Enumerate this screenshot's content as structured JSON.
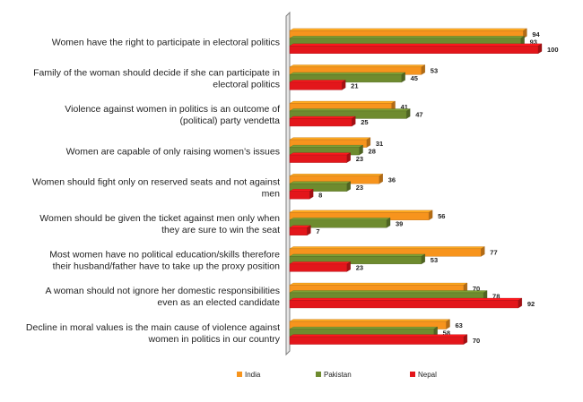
{
  "chart_data": {
    "type": "bar",
    "orientation": "horizontal",
    "categories": [
      "Women have the right to participate in electoral politics",
      "Family of the woman should decide if she can participate in electoral politics",
      "Violence against women in politics is an outcome of (political) party vendetta",
      "Women are capable of only raising women's issues",
      "Women should fight only on reserved seats and not against men",
      "Women should be given the ticket against men only when they are sure to win the seat",
      "Most women have no political education/skills therefore their husband/father have to take up the proxy position",
      "A woman should not ignore her domestic responsibilities even as an elected candidate",
      "Decline in moral values is the main cause of violence against women in politics in our country"
    ],
    "category_lines": [
      [
        "Women have the right to participate in electoral politics"
      ],
      [
        "Family of the woman should decide if she can participate in",
        "electoral politics"
      ],
      [
        "Violence against women in politics is an outcome of",
        "(political) party vendetta"
      ],
      [
        "Women are capable of only raising women’s issues"
      ],
      [
        "Women should fight only on reserved seats and not against",
        "men"
      ],
      [
        "Women should be given the ticket against men only when",
        "they are sure to win the seat"
      ],
      [
        "Most women have no political education/skills therefore",
        "their husband/father have to take up the proxy position"
      ],
      [
        "A woman should not ignore her domestic responsibilities",
        "even as an elected candidate"
      ],
      [
        "Decline in moral values is the main cause of violence against",
        "women in politics in our country"
      ]
    ],
    "series": [
      {
        "name": "India",
        "color": "#F7941D",
        "values": [
          94,
          53,
          41,
          31,
          36,
          56,
          77,
          70,
          63
        ]
      },
      {
        "name": "Pakistan",
        "color": "#6E8B2F",
        "values": [
          93,
          45,
          47,
          28,
          23,
          39,
          53,
          78,
          58
        ]
      },
      {
        "name": "Nepal",
        "color": "#E3161B",
        "values": [
          100,
          21,
          25,
          23,
          8,
          7,
          23,
          92,
          70
        ]
      }
    ],
    "xlim": [
      0,
      100
    ],
    "grid": false,
    "legend_position": "bottom",
    "style": "3d"
  }
}
